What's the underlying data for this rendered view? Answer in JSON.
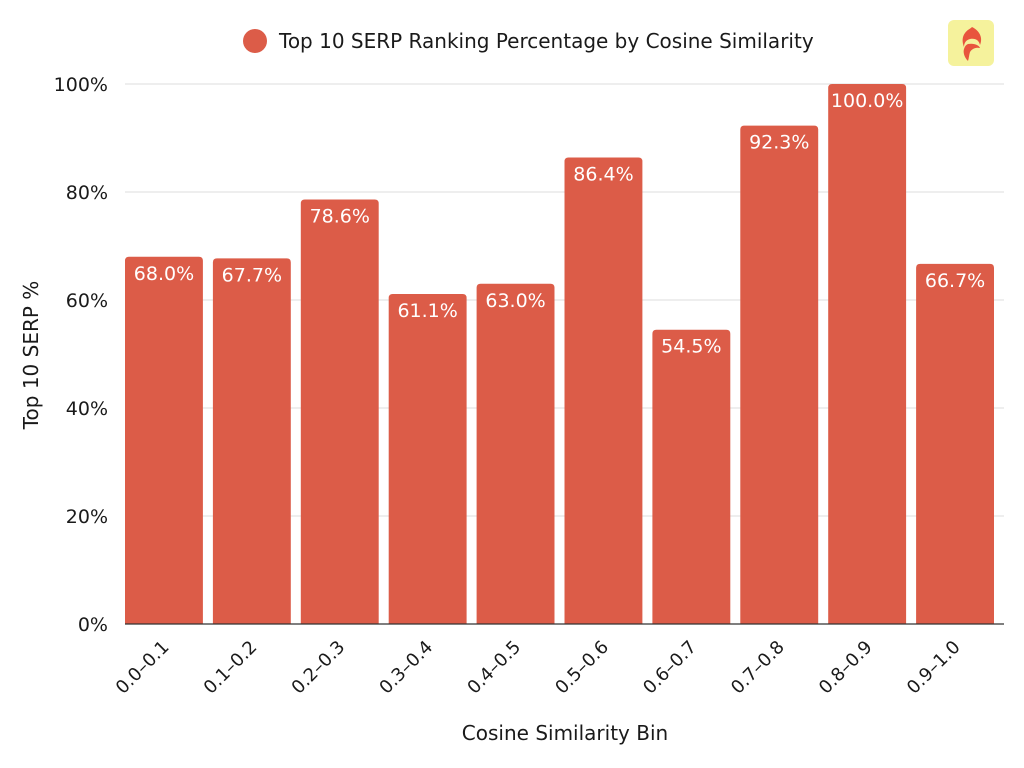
{
  "colors": {
    "bar": "#dc5c48",
    "grid": "#dedede",
    "axis": "#333333",
    "text": "#1a1a1a",
    "label_text": "#ffffff",
    "logo_bg": "#f5f29c"
  },
  "brand": {
    "icon": "flame-logo-icon"
  },
  "chart_data": {
    "type": "bar",
    "title": "",
    "legend": {
      "position": "top-center",
      "entries": [
        "Top 10 SERP Ranking Percentage by Cosine Similarity"
      ]
    },
    "categories": [
      "0.0–0.1",
      "0.1–0.2",
      "0.2–0.3",
      "0.3–0.4",
      "0.4–0.5",
      "0.5–0.6",
      "0.6–0.7",
      "0.7–0.8",
      "0.8–0.9",
      "0.9–1.0"
    ],
    "series": [
      {
        "name": "Top 10 SERP Ranking Percentage by Cosine Similarity",
        "values": [
          68.0,
          67.7,
          78.6,
          61.1,
          63.0,
          86.4,
          54.5,
          92.3,
          100.0,
          66.7
        ],
        "data_labels": [
          "68.0%",
          "67.7%",
          "78.6%",
          "61.1%",
          "63.0%",
          "86.4%",
          "54.5%",
          "92.3%",
          "100.0%",
          "66.7%"
        ]
      }
    ],
    "xlabel": "Cosine Similarity Bin",
    "ylabel": "Top 10 SERP %",
    "ylim": [
      0,
      100
    ],
    "yticks": [
      0,
      20,
      40,
      60,
      80,
      100
    ],
    "ytick_labels": [
      "0%",
      "20%",
      "40%",
      "60%",
      "80%",
      "100%"
    ],
    "grid": true
  }
}
